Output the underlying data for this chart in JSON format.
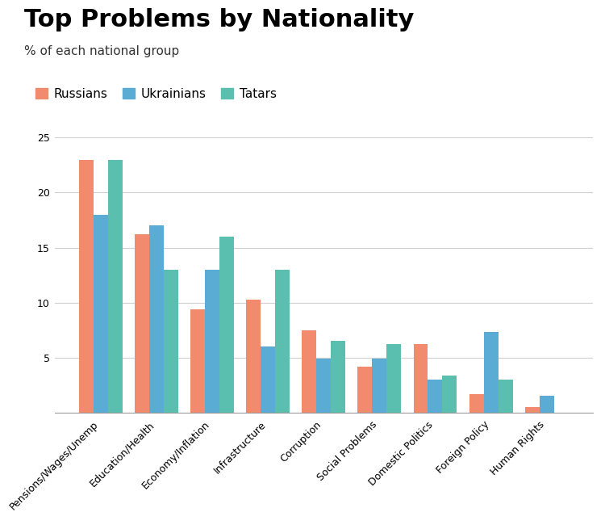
{
  "title": "Top Problems by Nationality",
  "subtitle": "% of each national group",
  "categories": [
    "Pensions/Wages/Unemp",
    "Education/Health",
    "Economy/Inflation",
    "Infrastructure",
    "Corruption",
    "Social Problems",
    "Domestic Politics",
    "Foreign Policy",
    "Human Rights"
  ],
  "series": {
    "Russians": [
      23.0,
      16.2,
      9.4,
      10.3,
      7.5,
      4.2,
      6.2,
      1.7,
      0.5
    ],
    "Ukrainians": [
      18.0,
      17.0,
      13.0,
      6.0,
      4.9,
      4.9,
      3.0,
      7.3,
      1.5
    ],
    "Tatars": [
      23.0,
      13.0,
      16.0,
      13.0,
      6.5,
      6.2,
      3.4,
      3.0,
      0.0
    ]
  },
  "colors": {
    "Russians": "#f28b6e",
    "Ukrainians": "#5bacd4",
    "Tatars": "#5bbfb0"
  },
  "legend_labels": [
    "Russians",
    "Ukrainians",
    "Tatars"
  ],
  "ylim": [
    0,
    25
  ],
  "yticks": [
    5,
    10,
    15,
    20,
    25
  ],
  "background_color": "#ffffff",
  "grid_color": "#d0d0d0",
  "title_fontsize": 22,
  "subtitle_fontsize": 11,
  "tick_fontsize": 9,
  "legend_fontsize": 11,
  "bar_width": 0.26
}
